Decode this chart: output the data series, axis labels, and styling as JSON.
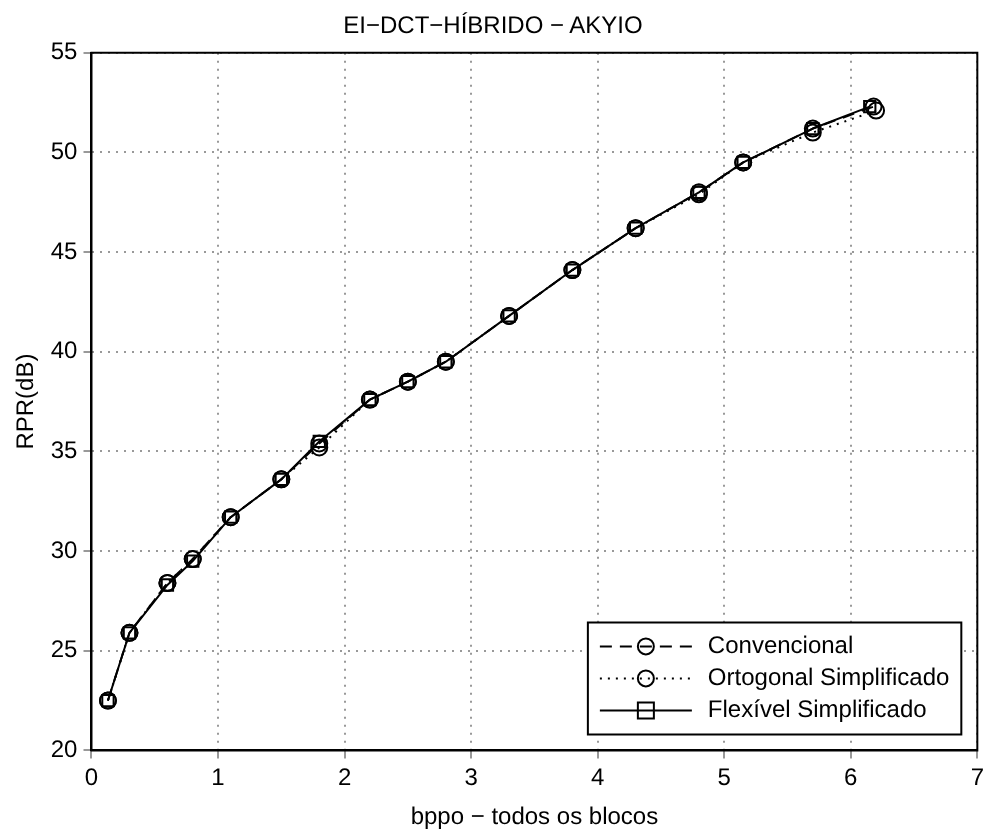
{
  "chart_data": {
    "type": "line",
    "title": "EI−DCT−HÍBRIDO − AKYIO",
    "xlabel": "bppo − todos os blocos",
    "ylabel": "RPR(dB)",
    "xlim": [
      0,
      7
    ],
    "xticks": [
      0,
      1,
      2,
      3,
      4,
      5,
      6,
      7
    ],
    "ylim": [
      20,
      55
    ],
    "yticks": [
      20,
      25,
      30,
      35,
      40,
      45,
      50,
      55
    ],
    "grid": true,
    "legend": "bottom right",
    "series": [
      {
        "name": "Convencional",
        "color": "#000000",
        "line_style": "dashed",
        "marker": "circle",
        "x": [
          0.13,
          0.3,
          0.6,
          0.8,
          1.1,
          1.5,
          1.8,
          2.2,
          2.5,
          2.8,
          3.3,
          3.8,
          4.3,
          4.8,
          5.15,
          5.7,
          6.18
        ],
        "values": [
          22.5,
          25.9,
          28.4,
          29.6,
          31.7,
          33.6,
          35.4,
          37.6,
          38.5,
          39.5,
          41.8,
          44.1,
          46.2,
          48.0,
          49.5,
          51.2,
          52.3
        ]
      },
      {
        "name": "Ortogonal Simplificado",
        "color": "#000000",
        "line_style": "dotted",
        "marker": "circle",
        "x": [
          0.13,
          0.3,
          0.6,
          0.8,
          1.1,
          1.5,
          1.8,
          2.2,
          2.5,
          2.8,
          3.3,
          3.8,
          4.3,
          4.8,
          5.15,
          5.7,
          6.2
        ],
        "values": [
          22.5,
          25.9,
          28.4,
          29.6,
          31.7,
          33.6,
          35.2,
          37.6,
          38.5,
          39.5,
          41.8,
          44.1,
          46.2,
          47.9,
          49.5,
          51.0,
          52.1
        ]
      },
      {
        "name": "Flexível Simplificado",
        "color": "#000000",
        "line_style": "solid",
        "marker": "square",
        "x": [
          0.13,
          0.3,
          0.6,
          0.8,
          1.1,
          1.5,
          1.8,
          2.2,
          2.5,
          2.8,
          3.3,
          3.8,
          4.3,
          4.8,
          5.15,
          5.7,
          6.15
        ],
        "values": [
          22.5,
          25.9,
          28.3,
          29.5,
          31.7,
          33.6,
          35.5,
          37.6,
          38.5,
          39.5,
          41.8,
          44.1,
          46.2,
          48.0,
          49.5,
          51.2,
          52.3
        ]
      }
    ]
  }
}
